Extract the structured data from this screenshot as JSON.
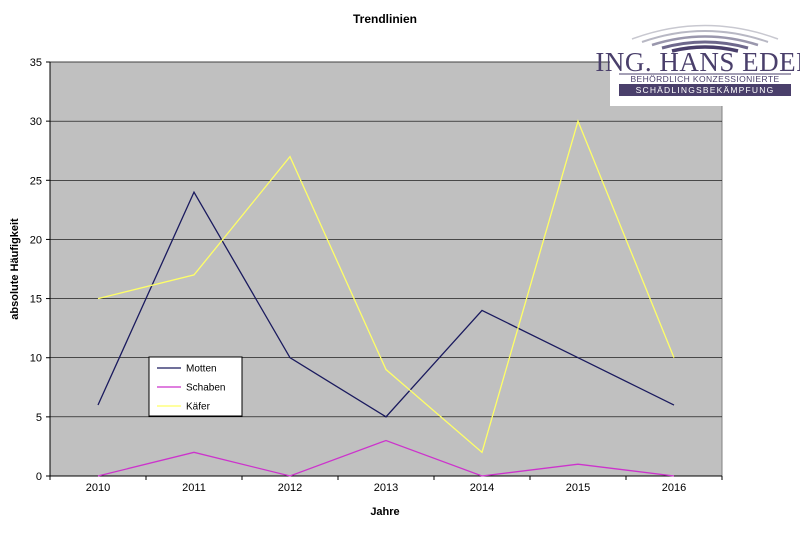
{
  "chart_data": {
    "type": "line",
    "title": "Trendlinien",
    "xlabel": "Jahre",
    "ylabel": "absolute Häufigkeit",
    "categories": [
      "2010",
      "2011",
      "2012",
      "2013",
      "2014",
      "2015",
      "2016"
    ],
    "ylim": [
      0,
      35
    ],
    "yticks": [
      "0",
      "5",
      "10",
      "15",
      "20",
      "25",
      "30",
      "35"
    ],
    "grid": true,
    "legend_position": "left-lower",
    "series": [
      {
        "name": "Motten",
        "color": "#1a1a5e",
        "values": [
          6,
          24,
          10,
          5,
          14,
          10,
          6
        ]
      },
      {
        "name": "Schaben",
        "color": "#cc33cc",
        "values": [
          0,
          2,
          0,
          3,
          0,
          1,
          0
        ]
      },
      {
        "name": "Käfer",
        "color": "#ffff66",
        "values": [
          15,
          17,
          27,
          9,
          2,
          30,
          10
        ]
      }
    ],
    "plot_background": "#c0c0c0"
  },
  "logo": {
    "name": "ING. HANS EDER",
    "tagline": "BEHÖRDLICH KONZESSIONIERTE",
    "service": "SCHÄDLINGSBEKÄMPFUNG",
    "color": "#4a3f6b"
  }
}
